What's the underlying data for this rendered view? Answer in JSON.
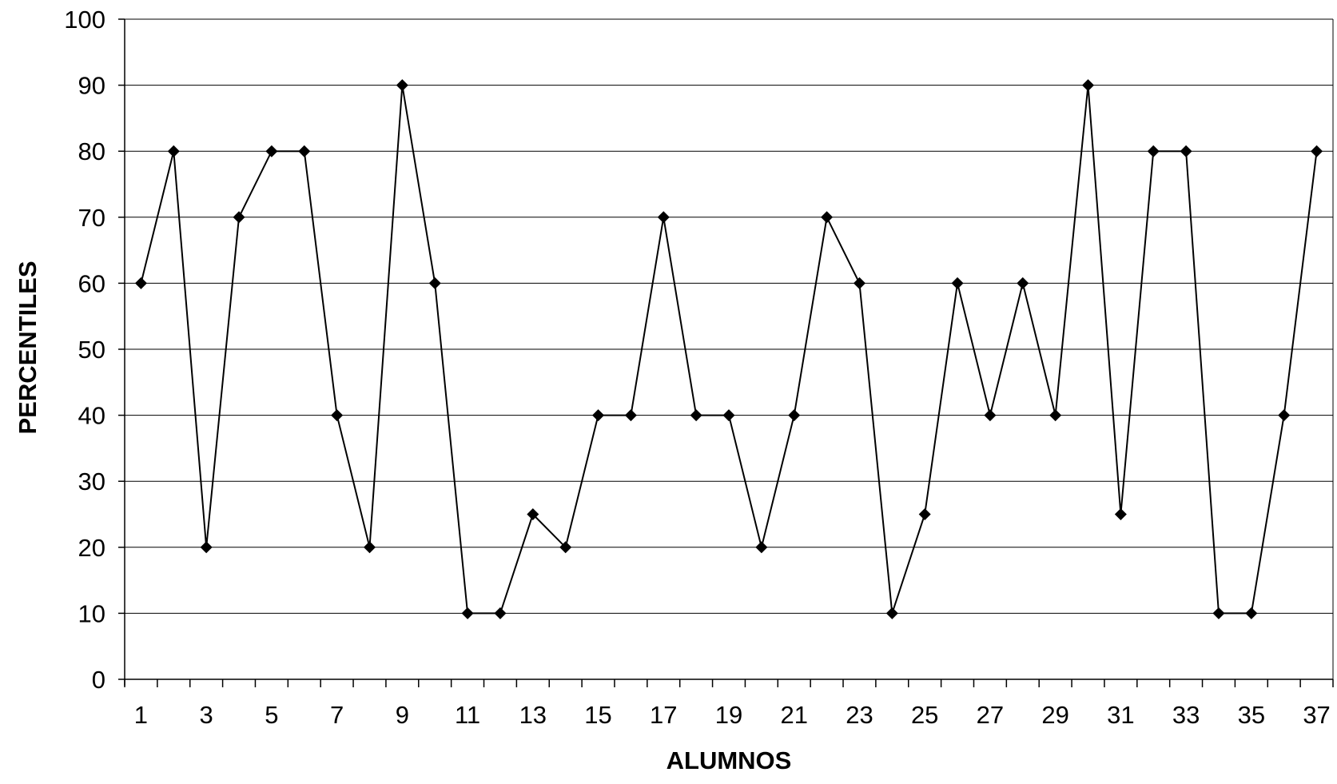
{
  "chart_data": {
    "type": "line",
    "xlabel": "ALUMNOS",
    "ylabel": "PERCENTILES",
    "ylim": [
      0,
      100
    ],
    "y_ticks": [
      0,
      10,
      20,
      30,
      40,
      50,
      60,
      70,
      80,
      90,
      100
    ],
    "x": [
      1,
      2,
      3,
      4,
      5,
      6,
      7,
      8,
      9,
      10,
      11,
      12,
      13,
      14,
      15,
      16,
      17,
      18,
      19,
      20,
      21,
      22,
      23,
      24,
      25,
      26,
      27,
      28,
      29,
      30,
      31,
      32,
      33,
      34,
      35,
      36,
      37
    ],
    "x_tick_labels": [
      1,
      3,
      5,
      7,
      9,
      11,
      13,
      15,
      17,
      19,
      21,
      23,
      25,
      27,
      29,
      31,
      33,
      35,
      37
    ],
    "series": [
      {
        "values": [
          60,
          80,
          20,
          70,
          80,
          80,
          40,
          20,
          90,
          60,
          10,
          10,
          25,
          20,
          40,
          40,
          70,
          40,
          40,
          20,
          40,
          70,
          60,
          10,
          25,
          60,
          40,
          60,
          40,
          90,
          25,
          80,
          80,
          10,
          10,
          40,
          80
        ]
      }
    ],
    "grid": "horizontal",
    "legend": "none",
    "line_color": "#000000",
    "marker": "diamond"
  }
}
